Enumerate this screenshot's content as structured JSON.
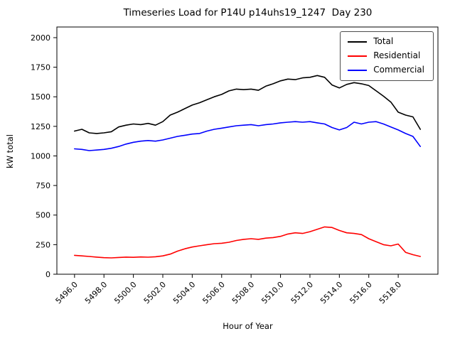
{
  "figure": {
    "title": "Timeseries Load for P14U p14uhs19_1247  Day 230",
    "xlabel": "Hour of Year",
    "ylabel": "kW total"
  },
  "chart_data": {
    "type": "line",
    "title": "Timeseries Load for P14U p14uhs19_1247  Day 230",
    "xlabel": "Hour of Year",
    "ylabel": "kW total",
    "xlim": [
      5494.8,
      5520.7
    ],
    "ylim": [
      0,
      2090
    ],
    "xticks": [
      5496,
      5498,
      5500,
      5502,
      5504,
      5506,
      5508,
      5510,
      5512,
      5514,
      5516,
      5518
    ],
    "xtick_labels": [
      "5496.0",
      "5498.0",
      "5500.0",
      "5502.0",
      "5504.0",
      "5506.0",
      "5508.0",
      "5510.0",
      "5512.0",
      "5514.0",
      "5516.0",
      "5518.0"
    ],
    "yticks": [
      0,
      250,
      500,
      750,
      1000,
      1250,
      1500,
      1750,
      2000
    ],
    "x_start": 5496.0,
    "x_step": 0.5,
    "grid": false,
    "legend_position": "upper right",
    "series": [
      {
        "name": "Total",
        "color": "#000000",
        "values": [
          1210,
          1225,
          1195,
          1190,
          1195,
          1205,
          1245,
          1260,
          1270,
          1265,
          1275,
          1260,
          1290,
          1345,
          1370,
          1400,
          1430,
          1450,
          1475,
          1500,
          1520,
          1550,
          1565,
          1560,
          1565,
          1555,
          1590,
          1610,
          1635,
          1650,
          1645,
          1660,
          1665,
          1680,
          1665,
          1600,
          1575,
          1605,
          1620,
          1610,
          1595,
          1550,
          1505,
          1455,
          1370,
          1345,
          1330,
          1225
        ]
      },
      {
        "name": "Residential",
        "color": "#ff0000",
        "values": [
          160,
          155,
          150,
          145,
          140,
          138,
          142,
          145,
          143,
          146,
          144,
          148,
          155,
          170,
          195,
          215,
          230,
          240,
          250,
          258,
          262,
          270,
          285,
          295,
          300,
          295,
          305,
          310,
          320,
          340,
          350,
          345,
          360,
          380,
          400,
          395,
          370,
          350,
          345,
          335,
          300,
          275,
          250,
          240,
          255,
          185,
          165,
          150
        ]
      },
      {
        "name": "Commercial",
        "color": "#0000ff",
        "values": [
          1060,
          1055,
          1045,
          1050,
          1055,
          1065,
          1080,
          1100,
          1115,
          1125,
          1130,
          1125,
          1135,
          1150,
          1165,
          1175,
          1185,
          1190,
          1210,
          1225,
          1235,
          1245,
          1255,
          1260,
          1265,
          1255,
          1265,
          1270,
          1280,
          1285,
          1290,
          1285,
          1290,
          1280,
          1270,
          1240,
          1220,
          1240,
          1285,
          1270,
          1285,
          1290,
          1270,
          1245,
          1220,
          1190,
          1165,
          1080
        ]
      }
    ]
  }
}
